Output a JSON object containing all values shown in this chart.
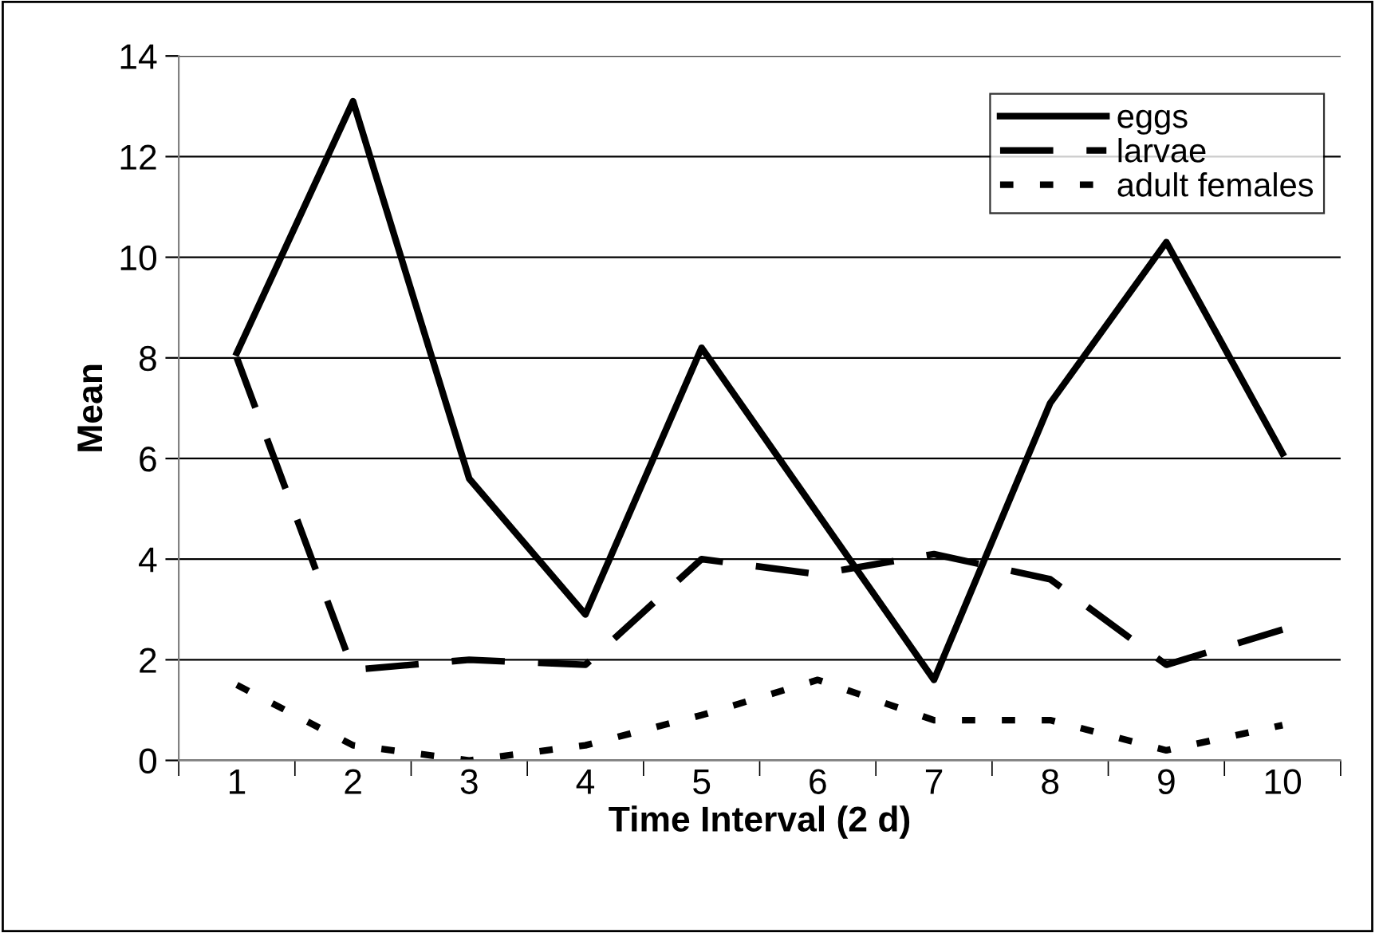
{
  "chart_data": {
    "type": "line",
    "xlabel": "Time Interval (2 d)",
    "ylabel": "Mean",
    "categories": [
      "1",
      "2",
      "3",
      "4",
      "5",
      "6",
      "7",
      "8",
      "9",
      "10"
    ],
    "series": [
      {
        "name": "eggs",
        "color": "#000000",
        "line_style": "solid",
        "values": [
          8.1,
          13.1,
          5.6,
          2.9,
          8.2,
          4.9,
          1.6,
          7.1,
          10.3,
          6.1
        ]
      },
      {
        "name": "larvae",
        "color": "#000000",
        "line_style": "dashed",
        "values": [
          8.0,
          1.8,
          2.0,
          1.9,
          4.0,
          3.7,
          4.1,
          3.6,
          1.9,
          2.6
        ]
      },
      {
        "name": "adult females",
        "color": "#000000",
        "line_style": "dotted",
        "values": [
          1.5,
          0.3,
          0.0,
          0.3,
          0.9,
          1.6,
          0.8,
          0.8,
          0.2,
          0.7
        ]
      }
    ],
    "ylim": [
      0,
      14
    ],
    "yticks": [
      0,
      2,
      4,
      6,
      8,
      10,
      12,
      14
    ],
    "grid": "y",
    "legend": "top right",
    "marker": "none"
  }
}
